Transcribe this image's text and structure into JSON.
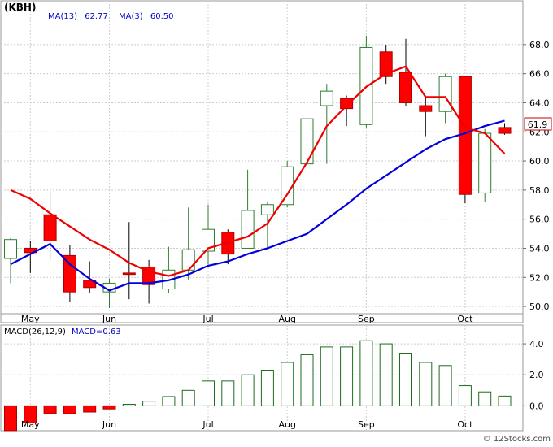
{
  "header": {
    "symbol": "(KBH)",
    "ma_long_label": "MA(13)",
    "ma_long_value": "62.77",
    "ma_short_label": "MA(3)",
    "ma_short_value": "60.50",
    "last_price": "61.9"
  },
  "macd_header": {
    "label": "MACD(26,12,9)",
    "value_label": "MACD=0.63"
  },
  "watermark": "© 12Stocks.com",
  "colors": {
    "up_candle": "#2e7d2e",
    "down_candle": "#ff0000",
    "ma_long": "#0000dd",
    "ma_short": "#ee0000",
    "macd_bar": "#1f6b1f",
    "macd_bar_negative": "#ff0000",
    "grid": "#cccccc",
    "header_text": "#0000cc"
  },
  "chart_data": [
    {
      "type": "candlestick",
      "title": "(KBH)",
      "x_ticks": [
        {
          "label": "May",
          "idx": 1.0
        },
        {
          "label": "Jun",
          "idx": 5.0
        },
        {
          "label": "Jul",
          "idx": 10.0
        },
        {
          "label": "Aug",
          "idx": 14.0
        },
        {
          "label": "Sep",
          "idx": 18.0
        },
        {
          "label": "Oct",
          "idx": 23.0
        }
      ],
      "y_ticks": [
        50.0,
        52.0,
        54.0,
        56.0,
        58.0,
        60.0,
        62.0,
        64.0,
        66.0,
        68.0
      ],
      "ylim": [
        49.5,
        69.5
      ],
      "candles": [
        {
          "open": 53.3,
          "high": 54.7,
          "low": 51.6,
          "close": 54.6
        },
        {
          "open": 54.0,
          "high": 54.5,
          "low": 52.3,
          "close": 53.7
        },
        {
          "open": 56.3,
          "high": 57.9,
          "low": 53.2,
          "close": 54.5
        },
        {
          "open": 53.5,
          "high": 54.2,
          "low": 50.3,
          "close": 51.0
        },
        {
          "open": 51.8,
          "high": 53.1,
          "low": 50.9,
          "close": 51.3
        },
        {
          "open": 51.0,
          "high": 51.9,
          "low": 49.9,
          "close": 51.6
        },
        {
          "open": 52.3,
          "high": 55.8,
          "low": 50.5,
          "close": 52.2
        },
        {
          "open": 52.7,
          "high": 53.2,
          "low": 50.2,
          "close": 51.5
        },
        {
          "open": 51.2,
          "high": 54.1,
          "low": 50.9,
          "close": 52.5
        },
        {
          "open": 52.5,
          "high": 56.8,
          "low": 51.8,
          "close": 53.9
        },
        {
          "open": 53.8,
          "high": 57.0,
          "low": 52.9,
          "close": 55.3
        },
        {
          "open": 55.1,
          "high": 55.3,
          "low": 52.9,
          "close": 53.6
        },
        {
          "open": 54.0,
          "high": 59.4,
          "low": 54.0,
          "close": 56.6
        },
        {
          "open": 56.3,
          "high": 57.2,
          "low": 54.0,
          "close": 57.0
        },
        {
          "open": 57.0,
          "high": 60.0,
          "low": 56.8,
          "close": 59.6
        },
        {
          "open": 59.8,
          "high": 63.8,
          "low": 58.2,
          "close": 62.9
        },
        {
          "open": 63.8,
          "high": 65.3,
          "low": 59.8,
          "close": 64.8
        },
        {
          "open": 64.3,
          "high": 64.5,
          "low": 62.4,
          "close": 63.6
        },
        {
          "open": 62.5,
          "high": 68.6,
          "low": 62.3,
          "close": 67.8
        },
        {
          "open": 67.5,
          "high": 68.0,
          "low": 65.3,
          "close": 65.8
        },
        {
          "open": 66.1,
          "high": 68.4,
          "low": 63.8,
          "close": 64.0
        },
        {
          "open": 63.8,
          "high": 64.5,
          "low": 61.7,
          "close": 63.4
        },
        {
          "open": 63.4,
          "high": 66.0,
          "low": 62.6,
          "close": 65.8
        },
        {
          "open": 65.8,
          "high": 65.8,
          "low": 57.1,
          "close": 57.7
        },
        {
          "open": 57.8,
          "high": 62.2,
          "low": 57.2,
          "close": 61.9
        },
        {
          "open": 62.3,
          "high": 62.6,
          "low": 61.8,
          "close": 61.9
        }
      ],
      "series": [
        {
          "name": "MA(13)",
          "key": "ma13",
          "values": [
            52.9,
            53.6,
            54.3,
            52.9,
            51.9,
            51.1,
            51.6,
            51.6,
            51.8,
            52.2,
            52.8,
            53.1,
            53.6,
            54.0,
            54.5,
            55.0,
            56.0,
            57.0,
            58.1,
            59.0,
            59.9,
            60.8,
            61.5,
            61.9,
            62.4,
            62.77
          ]
        },
        {
          "name": "MA(3)",
          "key": "ma3",
          "values": [
            58.0,
            57.4,
            56.4,
            55.5,
            54.6,
            53.9,
            53.0,
            52.4,
            52.1,
            52.5,
            54.0,
            54.4,
            54.8,
            55.7,
            57.7,
            59.9,
            62.4,
            63.8,
            65.1,
            66.0,
            66.5,
            64.4,
            64.4,
            62.3,
            61.9,
            60.5
          ]
        }
      ]
    },
    {
      "type": "bar",
      "title": "MACD(26,12,9)",
      "y_ticks": [
        0.0,
        2.0,
        4.0
      ],
      "ylim": [
        -1.5,
        5.0
      ],
      "x_ticks": [
        {
          "label": "May",
          "idx": 1.0
        },
        {
          "label": "Jun",
          "idx": 5.0
        },
        {
          "label": "Jul",
          "idx": 10.0
        },
        {
          "label": "Aug",
          "idx": 14.0
        },
        {
          "label": "Sep",
          "idx": 18.0
        },
        {
          "label": "Oct",
          "idx": 23.0
        }
      ],
      "values": [
        -1.6,
        -1.1,
        -0.5,
        -0.5,
        -0.4,
        -0.2,
        0.1,
        0.3,
        0.6,
        1.0,
        1.6,
        1.6,
        2.0,
        2.3,
        2.8,
        3.3,
        3.8,
        3.8,
        4.2,
        4.0,
        3.4,
        2.8,
        2.6,
        1.3,
        0.9,
        0.63
      ]
    }
  ]
}
